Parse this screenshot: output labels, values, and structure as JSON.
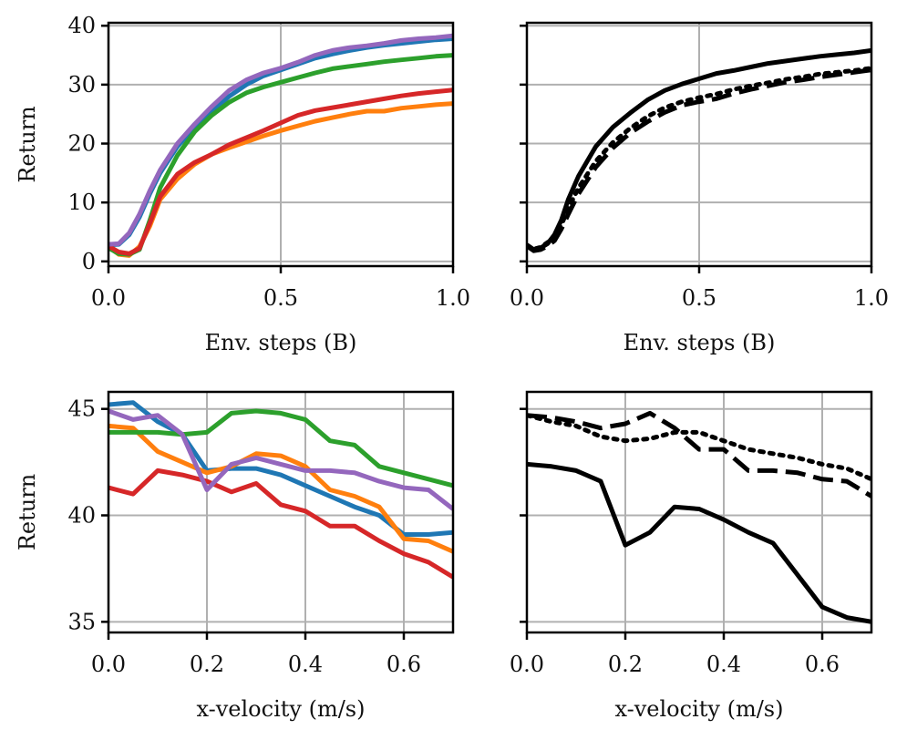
{
  "colors": {
    "blue": "#1f77b4",
    "orange": "#ff7f0e",
    "green": "#2ca02c",
    "red": "#d62728",
    "purple": "#9467bd",
    "black": "#000000",
    "grid": "#b0b0b0"
  },
  "chart_data": [
    {
      "id": "top-left",
      "type": "line",
      "xlabel": "Env. steps (B)",
      "ylabel": "Return",
      "xlim": [
        0,
        1
      ],
      "ylim": [
        -0.8,
        40.5
      ],
      "xticks": [
        0,
        0.5,
        1
      ],
      "xtick_labels": [
        "0.0",
        "0.5",
        "1.0"
      ],
      "yticks": [
        0,
        10,
        20,
        30,
        40
      ],
      "ytick_labels": [
        "0",
        "10",
        "20",
        "30",
        "40"
      ],
      "grid": true,
      "series": [
        {
          "name": "blue",
          "color": "blue",
          "dash": "solid",
          "x": [
            0,
            0.03,
            0.06,
            0.09,
            0.12,
            0.15,
            0.2,
            0.25,
            0.3,
            0.35,
            0.4,
            0.45,
            0.5,
            0.55,
            0.6,
            0.65,
            0.7,
            0.75,
            0.8,
            0.85,
            0.9,
            0.95,
            1.0
          ],
          "y": [
            2.8,
            2.9,
            4.5,
            7.5,
            11.5,
            15.0,
            19.5,
            22.8,
            25.5,
            28.0,
            30.0,
            31.5,
            32.5,
            33.5,
            34.5,
            35.2,
            35.8,
            36.3,
            36.7,
            37.0,
            37.3,
            37.6,
            37.8
          ]
        },
        {
          "name": "orange",
          "color": "orange",
          "dash": "solid",
          "x": [
            0,
            0.03,
            0.06,
            0.09,
            0.12,
            0.15,
            0.2,
            0.25,
            0.3,
            0.35,
            0.4,
            0.45,
            0.5,
            0.55,
            0.6,
            0.65,
            0.7,
            0.75,
            0.8,
            0.85,
            0.9,
            0.95,
            1.0
          ],
          "y": [
            2.5,
            1.2,
            1.0,
            2.5,
            6.0,
            10.5,
            14.0,
            16.5,
            18.2,
            19.3,
            20.3,
            21.3,
            22.2,
            23.0,
            23.8,
            24.4,
            25.0,
            25.5,
            25.5,
            26.0,
            26.3,
            26.6,
            26.8
          ]
        },
        {
          "name": "green",
          "color": "green",
          "dash": "solid",
          "x": [
            0,
            0.03,
            0.06,
            0.09,
            0.12,
            0.15,
            0.2,
            0.25,
            0.3,
            0.35,
            0.4,
            0.45,
            0.5,
            0.55,
            0.6,
            0.65,
            0.7,
            0.75,
            0.8,
            0.85,
            0.9,
            0.95,
            1.0
          ],
          "y": [
            2.3,
            1.3,
            1.2,
            2.0,
            7.0,
            12.5,
            18.0,
            22.0,
            24.8,
            27.0,
            28.6,
            29.6,
            30.4,
            31.2,
            32.0,
            32.7,
            33.1,
            33.5,
            33.9,
            34.2,
            34.5,
            34.8,
            35.0
          ]
        },
        {
          "name": "red",
          "color": "red",
          "dash": "solid",
          "x": [
            0,
            0.03,
            0.06,
            0.09,
            0.12,
            0.15,
            0.2,
            0.25,
            0.3,
            0.35,
            0.4,
            0.45,
            0.5,
            0.55,
            0.6,
            0.65,
            0.7,
            0.75,
            0.8,
            0.85,
            0.9,
            0.95,
            1.0
          ],
          "y": [
            2.6,
            1.6,
            1.3,
            2.2,
            6.5,
            11.0,
            14.8,
            16.8,
            18.2,
            19.8,
            21.0,
            22.2,
            23.5,
            24.8,
            25.6,
            26.1,
            26.6,
            27.1,
            27.6,
            28.1,
            28.5,
            28.8,
            29.1
          ]
        },
        {
          "name": "purple",
          "color": "purple",
          "dash": "solid",
          "x": [
            0,
            0.03,
            0.06,
            0.09,
            0.12,
            0.15,
            0.2,
            0.25,
            0.3,
            0.35,
            0.4,
            0.45,
            0.5,
            0.55,
            0.6,
            0.65,
            0.7,
            0.75,
            0.8,
            0.85,
            0.9,
            0.95,
            1.0
          ],
          "y": [
            2.9,
            3.0,
            4.8,
            8.0,
            12.0,
            15.5,
            20.0,
            23.3,
            26.3,
            29.0,
            30.8,
            32.0,
            32.8,
            33.8,
            35.0,
            35.8,
            36.3,
            36.6,
            37.0,
            37.5,
            37.8,
            38.0,
            38.3
          ]
        }
      ]
    },
    {
      "id": "top-right",
      "type": "line",
      "xlabel": "Env. steps (B)",
      "ylabel": "",
      "xlim": [
        0,
        1
      ],
      "ylim": [
        -0.8,
        40.5
      ],
      "xticks": [
        0,
        0.5,
        1
      ],
      "xtick_labels": [
        "0.0",
        "0.5",
        "1.0"
      ],
      "yticks": [
        0,
        10,
        20,
        30,
        40
      ],
      "ytick_labels": [],
      "grid": true,
      "series": [
        {
          "name": "solid",
          "color": "black",
          "dash": "solid",
          "x": [
            0,
            0.02,
            0.04,
            0.06,
            0.08,
            0.1,
            0.12,
            0.15,
            0.2,
            0.25,
            0.3,
            0.35,
            0.4,
            0.45,
            0.5,
            0.55,
            0.6,
            0.65,
            0.7,
            0.75,
            0.8,
            0.85,
            0.9,
            0.95,
            1.0
          ],
          "y": [
            2.8,
            2.0,
            2.3,
            3.0,
            4.5,
            7.0,
            10.5,
            14.5,
            19.5,
            22.8,
            25.2,
            27.4,
            29.0,
            30.1,
            31.0,
            31.9,
            32.4,
            33.0,
            33.6,
            34.0,
            34.4,
            34.8,
            35.1,
            35.4,
            35.8
          ]
        },
        {
          "name": "dashed",
          "color": "black",
          "dash": "dashed",
          "x": [
            0,
            0.02,
            0.04,
            0.06,
            0.08,
            0.1,
            0.12,
            0.15,
            0.2,
            0.25,
            0.3,
            0.35,
            0.4,
            0.45,
            0.5,
            0.55,
            0.6,
            0.65,
            0.7,
            0.75,
            0.8,
            0.85,
            0.9,
            0.95,
            1.0
          ],
          "y": [
            2.6,
            1.8,
            2.0,
            2.6,
            3.5,
            5.5,
            8.0,
            11.5,
            16.0,
            19.3,
            21.8,
            23.7,
            25.3,
            26.5,
            27.1,
            27.6,
            28.5,
            29.2,
            29.8,
            30.4,
            30.8,
            31.3,
            31.7,
            32.1,
            32.5
          ]
        },
        {
          "name": "dotted",
          "color": "black",
          "dash": "dotted",
          "x": [
            0,
            0.02,
            0.04,
            0.06,
            0.08,
            0.1,
            0.12,
            0.15,
            0.2,
            0.25,
            0.3,
            0.35,
            0.4,
            0.45,
            0.5,
            0.55,
            0.6,
            0.65,
            0.7,
            0.75,
            0.8,
            0.85,
            0.9,
            0.95,
            1.0
          ],
          "y": [
            2.7,
            2.1,
            2.4,
            3.2,
            4.2,
            6.2,
            9.0,
            12.5,
            17.0,
            20.2,
            22.6,
            24.6,
            26.1,
            27.1,
            27.8,
            28.4,
            29.2,
            29.8,
            30.3,
            30.9,
            31.3,
            31.8,
            32.1,
            32.4,
            32.8
          ]
        }
      ]
    },
    {
      "id": "bottom-left",
      "type": "line",
      "xlabel": "x-velocity (m/s)",
      "ylabel": "Return",
      "xlim": [
        0,
        0.7
      ],
      "ylim": [
        34.5,
        45.8
      ],
      "xticks": [
        0,
        0.2,
        0.4,
        0.6
      ],
      "xtick_labels": [
        "0.0",
        "0.2",
        "0.4",
        "0.6"
      ],
      "yticks": [
        35,
        40,
        45
      ],
      "ytick_labels": [
        "35",
        "40",
        "45"
      ],
      "grid": true,
      "series": [
        {
          "name": "blue",
          "color": "blue",
          "dash": "solid",
          "x": [
            0,
            0.05,
            0.1,
            0.15,
            0.2,
            0.25,
            0.3,
            0.35,
            0.4,
            0.45,
            0.5,
            0.55,
            0.6,
            0.65,
            0.7
          ],
          "y": [
            45.2,
            45.3,
            44.4,
            43.8,
            42.1,
            42.2,
            42.2,
            41.9,
            41.4,
            40.9,
            40.4,
            40.0,
            39.1,
            39.1,
            39.2
          ]
        },
        {
          "name": "orange",
          "color": "orange",
          "dash": "solid",
          "x": [
            0,
            0.05,
            0.1,
            0.15,
            0.2,
            0.25,
            0.3,
            0.35,
            0.4,
            0.45,
            0.5,
            0.55,
            0.6,
            0.65,
            0.7
          ],
          "y": [
            44.2,
            44.1,
            43.0,
            42.5,
            42.0,
            42.3,
            42.9,
            42.8,
            42.3,
            41.2,
            40.9,
            40.4,
            38.9,
            38.8,
            38.3
          ]
        },
        {
          "name": "green",
          "color": "green",
          "dash": "solid",
          "x": [
            0,
            0.05,
            0.1,
            0.15,
            0.2,
            0.25,
            0.3,
            0.35,
            0.4,
            0.45,
            0.5,
            0.55,
            0.6,
            0.65,
            0.7
          ],
          "y": [
            43.9,
            43.9,
            43.9,
            43.8,
            43.9,
            44.8,
            44.9,
            44.8,
            44.5,
            43.5,
            43.3,
            42.3,
            42.0,
            41.7,
            41.4
          ]
        },
        {
          "name": "red",
          "color": "red",
          "dash": "solid",
          "x": [
            0,
            0.05,
            0.1,
            0.15,
            0.2,
            0.25,
            0.3,
            0.35,
            0.4,
            0.45,
            0.5,
            0.55,
            0.6,
            0.65,
            0.7
          ],
          "y": [
            41.3,
            41.0,
            42.1,
            41.9,
            41.6,
            41.1,
            41.5,
            40.5,
            40.2,
            39.5,
            39.5,
            38.8,
            38.2,
            37.8,
            37.1
          ]
        },
        {
          "name": "purple",
          "color": "purple",
          "dash": "solid",
          "x": [
            0,
            0.05,
            0.1,
            0.15,
            0.2,
            0.25,
            0.3,
            0.35,
            0.4,
            0.45,
            0.5,
            0.55,
            0.6,
            0.65,
            0.7
          ],
          "y": [
            44.9,
            44.5,
            44.7,
            43.8,
            41.2,
            42.4,
            42.7,
            42.4,
            42.1,
            42.1,
            42.0,
            41.6,
            41.3,
            41.2,
            40.3
          ]
        }
      ]
    },
    {
      "id": "bottom-right",
      "type": "line",
      "xlabel": "x-velocity (m/s)",
      "ylabel": "",
      "xlim": [
        0,
        0.7
      ],
      "ylim": [
        34.5,
        45.8
      ],
      "xticks": [
        0,
        0.2,
        0.4,
        0.6
      ],
      "xtick_labels": [
        "0.0",
        "0.2",
        "0.4",
        "0.6"
      ],
      "yticks": [
        35,
        40,
        45
      ],
      "ytick_labels": [],
      "grid": true,
      "series": [
        {
          "name": "solid",
          "color": "black",
          "dash": "solid",
          "x": [
            0,
            0.05,
            0.1,
            0.15,
            0.2,
            0.25,
            0.3,
            0.35,
            0.4,
            0.45,
            0.5,
            0.55,
            0.6,
            0.65,
            0.7
          ],
          "y": [
            42.4,
            42.3,
            42.1,
            41.6,
            38.6,
            39.2,
            40.4,
            40.3,
            39.8,
            39.2,
            38.7,
            37.2,
            35.7,
            35.2,
            35.0
          ]
        },
        {
          "name": "dashed",
          "color": "black",
          "dash": "dashed",
          "x": [
            0,
            0.05,
            0.1,
            0.15,
            0.2,
            0.25,
            0.3,
            0.35,
            0.4,
            0.45,
            0.5,
            0.55,
            0.6,
            0.65,
            0.7
          ],
          "y": [
            44.7,
            44.6,
            44.4,
            44.1,
            44.3,
            44.8,
            44.1,
            43.1,
            43.1,
            42.1,
            42.1,
            42.0,
            41.7,
            41.6,
            40.9
          ]
        },
        {
          "name": "dotted",
          "color": "black",
          "dash": "dotted",
          "x": [
            0,
            0.05,
            0.1,
            0.15,
            0.2,
            0.25,
            0.3,
            0.35,
            0.4,
            0.45,
            0.5,
            0.55,
            0.6,
            0.65,
            0.7
          ],
          "y": [
            44.7,
            44.4,
            44.2,
            43.7,
            43.5,
            43.6,
            43.9,
            43.9,
            43.5,
            43.1,
            42.9,
            42.7,
            42.4,
            42.2,
            41.7
          ]
        }
      ]
    }
  ]
}
